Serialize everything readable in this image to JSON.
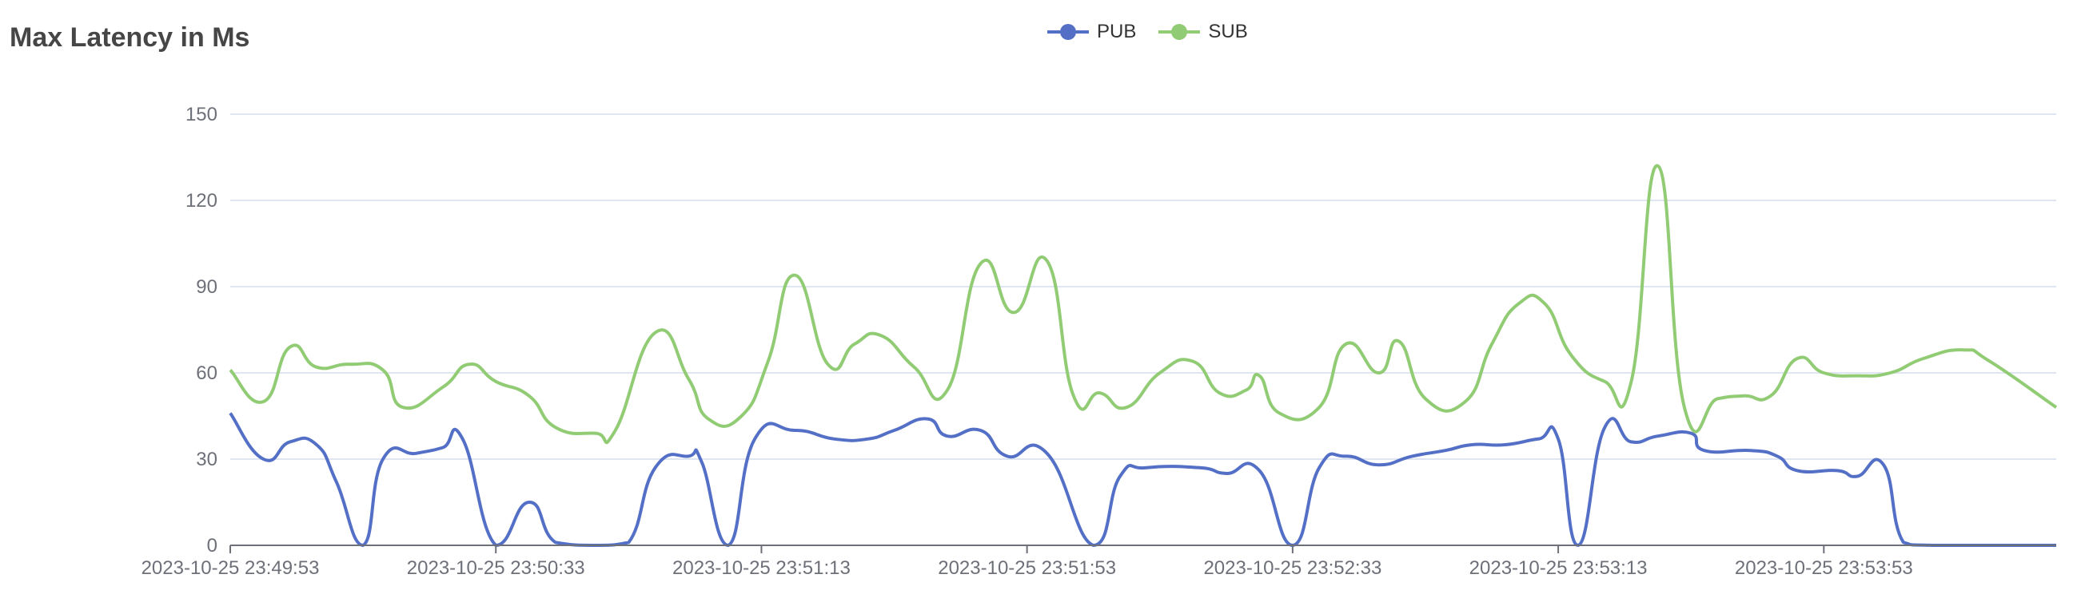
{
  "title": "Max Latency in Ms",
  "legend": {
    "items": [
      {
        "name": "PUB",
        "color": "#5470c6"
      },
      {
        "name": "SUB",
        "color": "#91cc75"
      }
    ]
  },
  "chart_data": {
    "type": "line",
    "smooth": true,
    "title": "Max Latency in Ms",
    "xlabel": "",
    "ylabel": "",
    "ylim": [
      0,
      150
    ],
    "yticks": [
      0,
      30,
      60,
      90,
      120,
      150
    ],
    "grid": "horizontal",
    "legend_position": "top-center",
    "x_tick_labels": [
      {
        "time": "2023-10-25 23:49:53",
        "label": "2023-10-25 23:49:53"
      },
      {
        "time": "2023-10-25 23:50:33",
        "label": "2023-10-25 23:50:33"
      },
      {
        "time": "2023-10-25 23:51:13",
        "label": "2023-10-25 23:51:13"
      },
      {
        "time": "2023-10-25 23:51:53",
        "label": "2023-10-25 23:51:53"
      },
      {
        "time": "2023-10-25 23:52:33",
        "label": "2023-10-25 23:52:33"
      },
      {
        "time": "2023-10-25 23:53:13",
        "label": "2023-10-25 23:53:13"
      },
      {
        "time": "2023-10-25 23:53:53",
        "label": "2023-10-25 23:53:53"
      }
    ],
    "x_range": [
      "2023-10-25 23:49:53",
      "2023-10-25 23:54:28"
    ],
    "series": [
      {
        "name": "PUB",
        "color": "#5470c6",
        "points": [
          [
            "2023-10-25 23:49:53",
            46
          ],
          [
            "2023-10-25 23:49:58",
            30
          ],
          [
            "2023-10-25 23:50:02",
            36
          ],
          [
            "2023-10-25 23:50:06",
            35
          ],
          [
            "2023-10-25 23:50:09",
            22
          ],
          [
            "2023-10-25 23:50:13",
            0
          ],
          [
            "2023-10-25 23:50:16",
            30
          ],
          [
            "2023-10-25 23:50:21",
            32
          ],
          [
            "2023-10-25 23:50:25",
            34
          ],
          [
            "2023-10-25 23:50:28",
            37
          ],
          [
            "2023-10-25 23:50:33",
            0
          ],
          [
            "2023-10-25 23:50:38",
            15
          ],
          [
            "2023-10-25 23:50:42",
            1
          ],
          [
            "2023-10-25 23:50:48",
            0
          ],
          [
            "2023-10-25 23:50:53",
            1
          ],
          [
            "2023-10-25 23:50:57",
            27
          ],
          [
            "2023-10-25 23:51:02",
            31
          ],
          [
            "2023-10-25 23:51:04",
            29
          ],
          [
            "2023-10-25 23:51:08",
            0
          ],
          [
            "2023-10-25 23:51:12",
            37
          ],
          [
            "2023-10-25 23:51:18",
            40
          ],
          [
            "2023-10-25 23:51:24",
            37
          ],
          [
            "2023-10-25 23:51:29",
            37
          ],
          [
            "2023-10-25 23:51:33",
            40
          ],
          [
            "2023-10-25 23:51:38",
            44
          ],
          [
            "2023-10-25 23:51:41",
            38
          ],
          [
            "2023-10-25 23:51:46",
            40
          ],
          [
            "2023-10-25 23:51:50",
            31
          ],
          [
            "2023-10-25 23:51:56",
            32
          ],
          [
            "2023-10-25 23:52:03",
            0
          ],
          [
            "2023-10-25 23:52:07",
            24
          ],
          [
            "2023-10-25 23:52:11",
            27
          ],
          [
            "2023-10-25 23:52:19",
            27
          ],
          [
            "2023-10-25 23:52:23",
            25
          ],
          [
            "2023-10-25 23:52:28",
            26
          ],
          [
            "2023-10-25 23:52:33",
            0
          ],
          [
            "2023-10-25 23:52:37",
            27
          ],
          [
            "2023-10-25 23:52:41",
            31
          ],
          [
            "2023-10-25 23:52:46",
            28
          ],
          [
            "2023-10-25 23:52:51",
            31
          ],
          [
            "2023-10-25 23:52:56",
            33
          ],
          [
            "2023-10-25 23:53:00",
            35
          ],
          [
            "2023-10-25 23:53:05",
            35
          ],
          [
            "2023-10-25 23:53:10",
            37
          ],
          [
            "2023-10-25 23:53:13",
            37
          ],
          [
            "2023-10-25 23:53:16",
            0
          ],
          [
            "2023-10-25 23:53:20",
            41
          ],
          [
            "2023-10-25 23:53:24",
            36
          ],
          [
            "2023-10-25 23:53:28",
            38
          ],
          [
            "2023-10-25 23:53:33",
            39
          ],
          [
            "2023-10-25 23:53:35",
            33
          ],
          [
            "2023-10-25 23:53:42",
            33
          ],
          [
            "2023-10-25 23:53:46",
            31
          ],
          [
            "2023-10-25 23:53:49",
            26
          ],
          [
            "2023-10-25 23:53:55",
            26
          ],
          [
            "2023-10-25 23:53:58",
            24
          ],
          [
            "2023-10-25 23:54:02",
            28
          ],
          [
            "2023-10-25 23:54:05",
            1
          ],
          [
            "2023-10-25 23:54:10",
            0
          ],
          [
            "2023-10-25 23:54:28",
            0
          ]
        ]
      },
      {
        "name": "SUB",
        "color": "#91cc75",
        "points": [
          [
            "2023-10-25 23:49:53",
            61
          ],
          [
            "2023-10-25 23:49:58",
            50
          ],
          [
            "2023-10-25 23:50:02",
            69
          ],
          [
            "2023-10-25 23:50:06",
            62
          ],
          [
            "2023-10-25 23:50:11",
            63
          ],
          [
            "2023-10-25 23:50:16",
            61
          ],
          [
            "2023-10-25 23:50:19",
            48
          ],
          [
            "2023-10-25 23:50:25",
            55
          ],
          [
            "2023-10-25 23:50:29",
            63
          ],
          [
            "2023-10-25 23:50:33",
            57
          ],
          [
            "2023-10-25 23:50:38",
            52
          ],
          [
            "2023-10-25 23:50:42",
            41
          ],
          [
            "2023-10-25 23:50:48",
            39
          ],
          [
            "2023-10-25 23:50:51",
            40
          ],
          [
            "2023-10-25 23:50:57",
            74
          ],
          [
            "2023-10-25 23:51:02",
            58
          ],
          [
            "2023-10-25 23:51:05",
            44
          ],
          [
            "2023-10-25 23:51:10",
            45
          ],
          [
            "2023-10-25 23:51:14",
            64
          ],
          [
            "2023-10-25 23:51:18",
            94
          ],
          [
            "2023-10-25 23:51:23",
            63
          ],
          [
            "2023-10-25 23:51:27",
            70
          ],
          [
            "2023-10-25 23:51:31",
            73
          ],
          [
            "2023-10-25 23:51:36",
            62
          ],
          [
            "2023-10-25 23:51:41",
            54
          ],
          [
            "2023-10-25 23:51:46",
            98
          ],
          [
            "2023-10-25 23:51:51",
            81
          ],
          [
            "2023-10-25 23:51:56",
            99
          ],
          [
            "2023-10-25 23:52:00",
            52
          ],
          [
            "2023-10-25 23:52:04",
            53
          ],
          [
            "2023-10-25 23:52:08",
            48
          ],
          [
            "2023-10-25 23:52:13",
            60
          ],
          [
            "2023-10-25 23:52:18",
            64
          ],
          [
            "2023-10-25 23:52:22",
            53
          ],
          [
            "2023-10-25 23:52:26",
            54
          ],
          [
            "2023-10-25 23:52:28",
            59
          ],
          [
            "2023-10-25 23:52:31",
            46
          ],
          [
            "2023-10-25 23:52:37",
            48
          ],
          [
            "2023-10-25 23:52:41",
            70
          ],
          [
            "2023-10-25 23:52:46",
            60
          ],
          [
            "2023-10-25 23:52:49",
            71
          ],
          [
            "2023-10-25 23:52:53",
            51
          ],
          [
            "2023-10-25 23:52:59",
            50
          ],
          [
            "2023-10-25 23:53:03",
            70
          ],
          [
            "2023-10-25 23:53:07",
            84
          ],
          [
            "2023-10-25 23:53:11",
            84
          ],
          [
            "2023-10-25 23:53:15",
            66
          ],
          [
            "2023-10-25 23:53:20",
            57
          ],
          [
            "2023-10-25 23:53:24",
            57
          ],
          [
            "2023-10-25 23:53:28",
            132
          ],
          [
            "2023-10-25 23:53:32",
            48
          ],
          [
            "2023-10-25 23:53:37",
            51
          ],
          [
            "2023-10-25 23:53:41",
            52
          ],
          [
            "2023-10-25 23:53:45",
            52
          ],
          [
            "2023-10-25 23:53:49",
            65
          ],
          [
            "2023-10-25 23:53:53",
            60
          ],
          [
            "2023-10-25 23:53:58",
            59
          ],
          [
            "2023-10-25 23:54:03",
            60
          ],
          [
            "2023-10-25 23:54:08",
            65
          ],
          [
            "2023-10-25 23:54:14",
            68
          ],
          [
            "2023-10-25 23:54:18",
            64
          ],
          [
            "2023-10-25 23:54:28",
            48
          ]
        ]
      }
    ]
  }
}
